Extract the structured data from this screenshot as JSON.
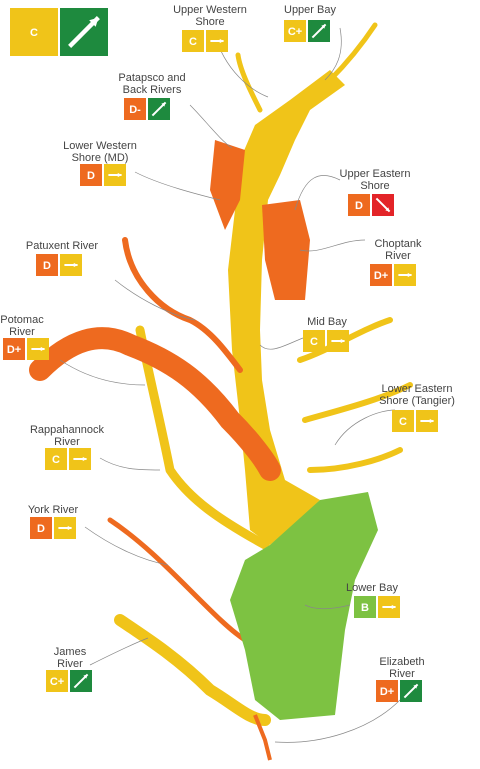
{
  "overall": {
    "grade": "C",
    "color": "#f0c419",
    "trend_color": "#1e8a3e"
  },
  "regions": [
    {
      "name": [
        "Upper Western",
        "Shore"
      ],
      "grade": "C",
      "color": "#f0c419",
      "trend_color": "#f0c419"
    },
    {
      "name": [
        "Upper Bay"
      ],
      "grade": "C+",
      "color": "#f0c419",
      "trend_color": "#1e8a3e"
    },
    {
      "name": [
        "Patapsco and",
        "Back Rivers"
      ],
      "grade": "D-",
      "color": "#ee6a1f",
      "trend_color": "#1e8a3e"
    },
    {
      "name": [
        "Lower Western",
        "Shore (MD)"
      ],
      "grade": "D",
      "color": "#ee6a1f",
      "trend_color": "#f0c419"
    },
    {
      "name": [
        "Upper Eastern",
        "Shore"
      ],
      "grade": "D",
      "color": "#ee6a1f",
      "trend_color": "#e32428"
    },
    {
      "name": [
        "Patuxent River"
      ],
      "grade": "D",
      "color": "#ee6a1f",
      "trend_color": "#f0c419"
    },
    {
      "name": [
        "Choptank",
        "River"
      ],
      "grade": "D+",
      "color": "#ee6a1f",
      "trend_color": "#f0c419"
    },
    {
      "name": [
        "Potomac",
        "River"
      ],
      "grade": "D+",
      "color": "#ee6a1f",
      "trend_color": "#f0c419"
    },
    {
      "name": [
        "Mid Bay"
      ],
      "grade": "C",
      "color": "#f0c419",
      "trend_color": "#f0c419"
    },
    {
      "name": [
        "Lower Eastern",
        "Shore (Tangier)"
      ],
      "grade": "C",
      "color": "#f0c419",
      "trend_color": "#f0c419"
    },
    {
      "name": [
        "Rappahannock",
        "River"
      ],
      "grade": "C",
      "color": "#f0c419",
      "trend_color": "#f0c419"
    },
    {
      "name": [
        "York River"
      ],
      "grade": "D",
      "color": "#ee6a1f",
      "trend_color": "#f0c419"
    },
    {
      "name": [
        "Lower Bay"
      ],
      "grade": "B",
      "color": "#7dc242",
      "trend_color": "#f0c419"
    },
    {
      "name": [
        "James",
        "River"
      ],
      "grade": "C+",
      "color": "#f0c419",
      "trend_color": "#1e8a3e"
    },
    {
      "name": [
        "Elizabeth",
        "River"
      ],
      "grade": "D+",
      "color": "#ee6a1f",
      "trend_color": "#1e8a3e"
    }
  ]
}
